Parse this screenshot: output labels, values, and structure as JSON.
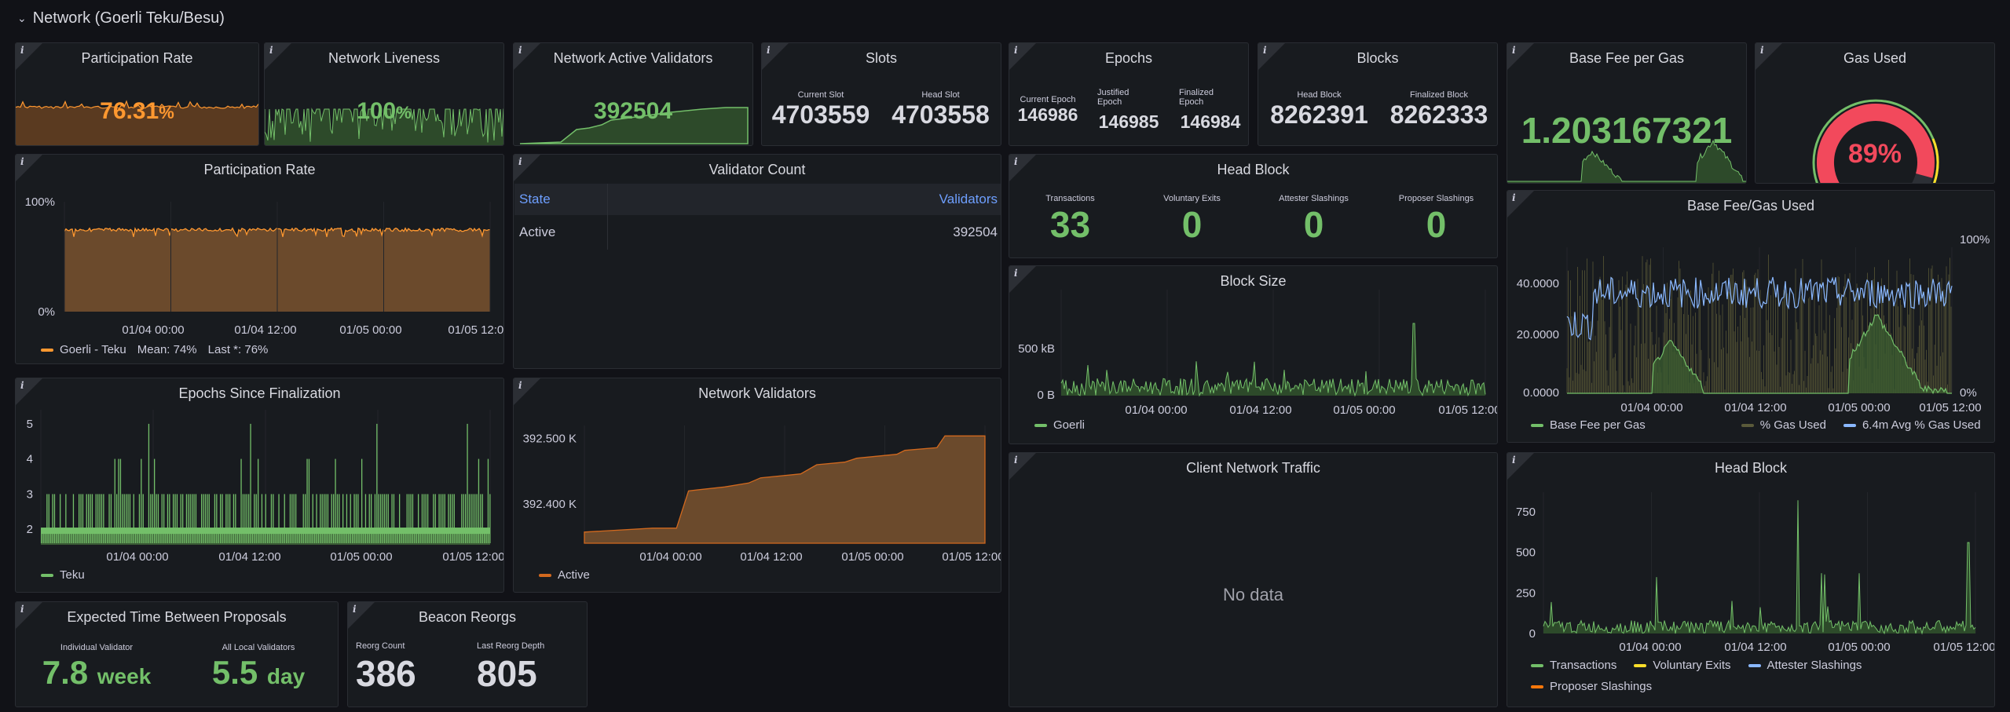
{
  "row": {
    "title": "Network (Goerli Teku/Besu)"
  },
  "info_glyph": "i",
  "colors": {
    "green": "#73bf69",
    "orange": "#ff9830",
    "red": "#f2495c",
    "blue": "#8ab8ff",
    "yellow": "#fade2a",
    "background": "#111217",
    "panel": "#181b1f"
  },
  "participation_rate_stat": {
    "title": "Participation Rate",
    "value": "76.31",
    "unit": "%"
  },
  "network_liveness": {
    "title": "Network Liveness",
    "value": "100",
    "unit": "%"
  },
  "network_active_validators": {
    "title": "Network Active Validators",
    "value": "392504"
  },
  "slots": {
    "title": "Slots",
    "current_label": "Current Slot",
    "current_value": "4703559",
    "head_label": "Head Slot",
    "head_value": "4703558"
  },
  "epochs": {
    "title": "Epochs",
    "current_label": "Current Epoch",
    "current_value": "146986",
    "justified_label": "Justified Epoch",
    "justified_value": "146985",
    "finalized_label": "Finalized Epoch",
    "finalized_value": "146984"
  },
  "blocks": {
    "title": "Blocks",
    "head_label": "Head Block",
    "head_value": "8262391",
    "finalized_label": "Finalized Block",
    "finalized_value": "8262333"
  },
  "base_fee": {
    "title": "Base Fee per Gas",
    "value": "1.203167321"
  },
  "gas_used": {
    "title": "Gas Used",
    "value": "89",
    "unit": "%",
    "fraction": 0.89
  },
  "participation_chart": {
    "title": "Participation Rate",
    "legend": "Goerli - Teku",
    "mean": "Mean: 74%",
    "last": "Last *: 76%"
  },
  "validator_count": {
    "title": "Validator Count",
    "col_state": "State",
    "col_validators": "Validators",
    "rows": [
      {
        "state": "Active",
        "validators": "392504"
      }
    ]
  },
  "head_block_stats": {
    "title": "Head Block",
    "items": [
      {
        "label": "Transactions",
        "value": "33"
      },
      {
        "label": "Voluntary Exits",
        "value": "0"
      },
      {
        "label": "Attester Slashings",
        "value": "0"
      },
      {
        "label": "Proposer Slashings",
        "value": "0"
      }
    ]
  },
  "block_size": {
    "title": "Block Size",
    "legend": "Goerli"
  },
  "base_fee_gas_used": {
    "title": "Base Fee/Gas Used",
    "legend": [
      "Base Fee per Gas",
      "% Gas Used",
      "6.4m Avg % Gas Used"
    ]
  },
  "epochs_since_finalization": {
    "title": "Epochs Since Finalization",
    "legend": "Teku"
  },
  "network_validators": {
    "title": "Network Validators",
    "legend": "Active"
  },
  "client_network_traffic": {
    "title": "Client Network Traffic",
    "message": "No data"
  },
  "head_block_chart": {
    "title": "Head Block",
    "legend": [
      "Transactions",
      "Voluntary Exits",
      "Attester Slashings",
      "Proposer Slashings"
    ]
  },
  "expected_time": {
    "title": "Expected Time Between Proposals",
    "individual_label": "Individual Validator",
    "individual_value": "7.8",
    "individual_unit": "week",
    "local_label": "All Local Validators",
    "local_value": "5.5",
    "local_unit": "day"
  },
  "beacon_reorgs": {
    "title": "Beacon Reorgs",
    "count_label": "Reorg Count",
    "count_value": "386",
    "depth_label": "Last Reorg Depth",
    "depth_value": "805"
  },
  "chart_data": [
    {
      "type": "area",
      "title": "Participation Rate",
      "x_ticks": [
        "01/04 00:00",
        "01/04 12:00",
        "01/05 00:00",
        "01/05 12:00"
      ],
      "ylim": [
        0,
        100
      ],
      "y_ticks": [
        "0%",
        "100%"
      ],
      "series": [
        {
          "name": "Goerli - Teku",
          "mean": 74,
          "last": 76
        }
      ],
      "legend": "bottom-left",
      "grid": true
    },
    {
      "type": "bar",
      "title": "Epochs Since Finalization",
      "x_ticks": [
        "01/04 00:00",
        "01/04 12:00",
        "01/05 00:00",
        "01/05 12:00"
      ],
      "y_ticks": [
        "2",
        "3",
        "4",
        "5"
      ],
      "ylim": [
        1.6,
        5.4
      ],
      "series": [
        {
          "name": "Teku"
        }
      ],
      "legend": "bottom-left",
      "grid": true
    },
    {
      "type": "area",
      "title": "Network Validators",
      "x_ticks": [
        "01/04 00:00",
        "01/04 12:00",
        "01/05 00:00",
        "01/05 12:00"
      ],
      "y_ticks": [
        "392.400 K",
        "392.500 K"
      ],
      "ylim": [
        392340,
        392520
      ],
      "series": [
        {
          "name": "Active",
          "x": [
            0,
            0.17,
            0.23,
            0.26,
            0.35,
            0.41,
            0.44,
            0.54,
            0.58,
            0.65,
            0.68,
            0.78,
            0.8,
            0.88,
            0.9,
            1.0
          ],
          "values": [
            392357,
            392363,
            392363,
            392420,
            392426,
            392432,
            392440,
            392446,
            392460,
            392464,
            392470,
            392476,
            392482,
            392486,
            392504,
            392504
          ]
        }
      ],
      "legend": "bottom-left",
      "grid": true
    },
    {
      "type": "line",
      "title": "Block Size",
      "x_ticks": [
        "01/04 00:00",
        "01/04 12:00",
        "01/05 00:00",
        "01/05 12:00"
      ],
      "y_ticks": [
        "0 B",
        "500 kB"
      ],
      "series": [
        {
          "name": "Goerli"
        }
      ],
      "legend": "bottom-left",
      "grid": true
    },
    {
      "type": "line",
      "title": "Base Fee/Gas Used",
      "x_ticks": [
        "01/04 00:00",
        "01/04 12:00",
        "01/05 00:00",
        "01/05 12:00"
      ],
      "y_ticks_left": [
        "0.0000",
        "20.0000",
        "40.0000"
      ],
      "y_ticks_right": [
        "0%",
        "100%"
      ],
      "series": [
        {
          "name": "Base Fee per Gas"
        },
        {
          "name": "% Gas Used"
        },
        {
          "name": "6.4m Avg % Gas Used"
        }
      ],
      "legend": "bottom-left",
      "grid": true
    },
    {
      "type": "line",
      "title": "Head Block",
      "x_ticks": [
        "01/04 00:00",
        "01/04 12:00",
        "01/05 00:00",
        "01/05 12:00"
      ],
      "y_ticks": [
        "0",
        "250",
        "500",
        "750"
      ],
      "ylim": [
        0,
        870
      ],
      "series": [
        {
          "name": "Transactions"
        },
        {
          "name": "Voluntary Exits"
        },
        {
          "name": "Attester Slashings"
        },
        {
          "name": "Proposer Slashings"
        }
      ],
      "legend": "bottom-left",
      "grid": true
    }
  ]
}
